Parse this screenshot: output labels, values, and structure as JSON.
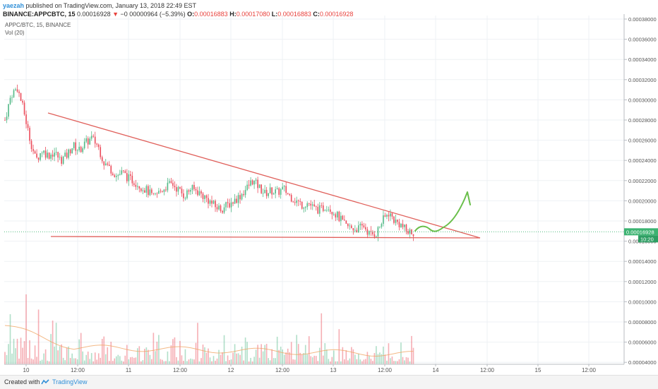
{
  "header": {
    "author": "yaezah",
    "published": "published on TradingView.com, January 13, 2018 22:49 EST",
    "symbol": "BINANCE:APPCBTC, 15",
    "last": "0.00016928",
    "arrow": "▼",
    "change": "−0.00000964 (−5.39%)",
    "o_label": "O:",
    "o_value": "0.00016883",
    "h_label": "H:",
    "h_value": "0.00017080",
    "l_label": "L:",
    "l_value": "0.00016883",
    "c_label": "C:",
    "c_value": "0.00016928"
  },
  "legend": {
    "series": "APPC/BTC, 15, BINANCE",
    "volume": "Vol (20)"
  },
  "footer": {
    "created_with": "Created with",
    "brand": "TradingView"
  },
  "chart_data": {
    "type": "candlestick",
    "y_ticks": [
      "0.00038000",
      "0.00036000",
      "0.00034000",
      "0.00032000",
      "0.00030000",
      "0.00028000",
      "0.00026000",
      "0.00024000",
      "0.00022000",
      "0.00020000",
      "0.00018000",
      "0.00016000",
      "0.00014000",
      "0.00012000",
      "0.00010000",
      "0.00008000",
      "0.00006000",
      "0.00004000"
    ],
    "price_range": [
      0.00016,
      0.00038
    ],
    "x_ticks": [
      "10",
      "12:00",
      "11",
      "12:00",
      "12",
      "12:00",
      "13",
      "12:00",
      "14",
      "12:00",
      "15",
      "12:00"
    ],
    "last_price_label": "0.00016928",
    "countdown_label": "10:20",
    "grid": true,
    "colors": {
      "up": "#53b987",
      "down": "#eb4d5c",
      "trendline": "#e0605b",
      "projection": "#6abf4b",
      "axis_label_bg": "#3cb371"
    },
    "price_path": [
      0.00028,
      0.000305,
      0.000312,
      0.00029,
      0.000262,
      0.00024,
      0.00025,
      0.000245,
      0.000248,
      0.00024,
      0.000245,
      0.000255,
      0.00025,
      0.000257,
      0.000262,
      0.000255,
      0.000238,
      0.000232,
      0.000225,
      0.000228,
      0.000222,
      0.000219,
      0.000214,
      0.00021,
      0.000203,
      0.000209,
      0.000214,
      0.000217,
      0.000211,
      0.000205,
      0.000212,
      0.00021,
      0.000205,
      0.0002,
      0.000194,
      0.000192,
      0.000196,
      0.0002,
      0.000205,
      0.000212,
      0.00022,
      0.000214,
      0.000207,
      0.00021,
      0.000208,
      0.000212,
      0.000205,
      0.0002,
      0.000196,
      0.000198,
      0.000192,
      0.000191,
      0.000195,
      0.00019,
      0.000183,
      0.000175,
      0.000173,
      0.000172,
      0.000175,
      0.000166,
      0.000168,
      0.00018,
      0.000188,
      0.00018,
      0.000176,
      0.000169,
      0.000169
    ],
    "trendlines": [
      {
        "name": "descending resistance",
        "from": [
          "10 07:00",
          0.000285
        ],
        "to": [
          "14 07:00",
          0.000164
        ]
      },
      {
        "name": "horizontal support",
        "from": [
          "10 07:00",
          0.000166
        ],
        "to": [
          "14 07:00",
          0.000164
        ]
      }
    ]
  }
}
